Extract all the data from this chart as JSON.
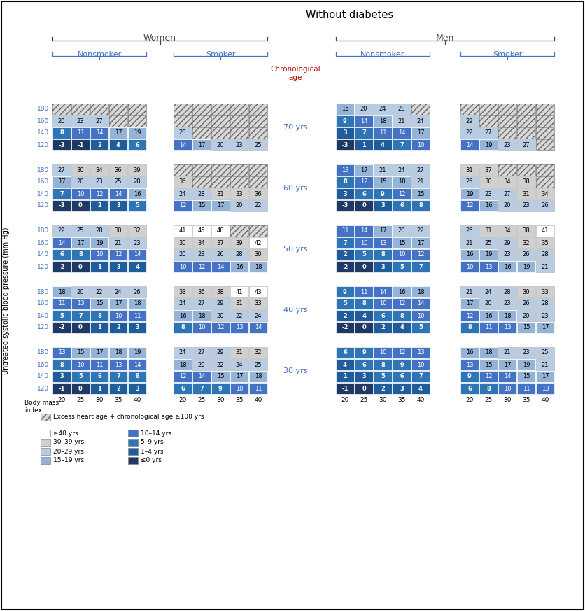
{
  "title": "Without diabetes",
  "ylabel": "Untreated systolic blood pressure (mm Hg)",
  "bmi_labels": [
    20,
    25,
    30,
    35,
    40
  ],
  "tables": {
    "women_nonsmoker": {
      "age70": [
        [
          null,
          null,
          null,
          null,
          null
        ],
        [
          20,
          23,
          27,
          null,
          null
        ],
        [
          8,
          11,
          14,
          17,
          19
        ],
        [
          -3,
          -1,
          2,
          4,
          6
        ]
      ],
      "age60": [
        [
          27,
          30,
          34,
          36,
          39
        ],
        [
          17,
          20,
          23,
          25,
          28
        ],
        [
          7,
          10,
          12,
          14,
          16
        ],
        [
          -3,
          0,
          2,
          3,
          5
        ]
      ],
      "age50": [
        [
          22,
          25,
          28,
          30,
          32
        ],
        [
          14,
          17,
          19,
          21,
          23
        ],
        [
          6,
          8,
          10,
          12,
          14
        ],
        [
          -2,
          0,
          1,
          3,
          4
        ]
      ],
      "age40": [
        [
          18,
          20,
          22,
          24,
          26
        ],
        [
          11,
          13,
          15,
          17,
          18
        ],
        [
          5,
          7,
          8,
          10,
          11
        ],
        [
          -2,
          0,
          1,
          2,
          3
        ]
      ],
      "age30": [
        [
          13,
          15,
          17,
          18,
          19
        ],
        [
          8,
          10,
          11,
          13,
          14
        ],
        [
          3,
          5,
          6,
          7,
          8
        ],
        [
          -1,
          0,
          1,
          2,
          3
        ]
      ]
    },
    "women_smoker": {
      "age70": [
        [
          null,
          null,
          null,
          null,
          null
        ],
        [
          null,
          null,
          null,
          null,
          null
        ],
        [
          28,
          null,
          null,
          null,
          null
        ],
        [
          14,
          17,
          20,
          23,
          25
        ]
      ],
      "age60": [
        [
          null,
          null,
          null,
          null,
          null
        ],
        [
          36,
          null,
          null,
          null,
          null
        ],
        [
          24,
          28,
          31,
          33,
          36
        ],
        [
          12,
          15,
          17,
          20,
          22
        ]
      ],
      "age50": [
        [
          41,
          45,
          48,
          null,
          null
        ],
        [
          30,
          34,
          37,
          39,
          42
        ],
        [
          20,
          23,
          26,
          28,
          30
        ],
        [
          10,
          12,
          14,
          16,
          18
        ]
      ],
      "age40": [
        [
          33,
          36,
          38,
          41,
          43
        ],
        [
          24,
          27,
          29,
          31,
          33
        ],
        [
          16,
          18,
          20,
          22,
          24
        ],
        [
          8,
          10,
          12,
          13,
          14
        ]
      ],
      "age30": [
        [
          24,
          27,
          29,
          31,
          32
        ],
        [
          18,
          20,
          22,
          24,
          25
        ],
        [
          12,
          14,
          15,
          17,
          18
        ],
        [
          6,
          7,
          9,
          10,
          11
        ]
      ]
    },
    "men_nonsmoker": {
      "age70": [
        [
          15,
          20,
          24,
          28,
          null
        ],
        [
          9,
          14,
          18,
          21,
          24
        ],
        [
          3,
          7,
          11,
          14,
          17
        ],
        [
          -3,
          1,
          4,
          7,
          10
        ]
      ],
      "age60": [
        [
          13,
          17,
          21,
          24,
          27
        ],
        [
          8,
          12,
          15,
          18,
          21
        ],
        [
          3,
          6,
          9,
          12,
          15
        ],
        [
          -3,
          0,
          3,
          6,
          8
        ]
      ],
      "age50": [
        [
          11,
          14,
          17,
          20,
          22
        ],
        [
          7,
          10,
          13,
          15,
          17
        ],
        [
          2,
          5,
          8,
          10,
          12
        ],
        [
          -2,
          0,
          3,
          5,
          7
        ]
      ],
      "age40": [
        [
          9,
          11,
          14,
          16,
          18
        ],
        [
          5,
          8,
          10,
          12,
          14
        ],
        [
          2,
          4,
          6,
          8,
          10
        ],
        [
          -2,
          0,
          2,
          4,
          5
        ]
      ],
      "age30": [
        [
          6,
          9,
          10,
          12,
          13
        ],
        [
          4,
          6,
          8,
          9,
          10
        ],
        [
          1,
          3,
          5,
          6,
          7
        ],
        [
          -1,
          0,
          2,
          3,
          4
        ]
      ]
    },
    "men_smoker": {
      "age70": [
        [
          null,
          null,
          null,
          null,
          null
        ],
        [
          29,
          null,
          null,
          null,
          null
        ],
        [
          22,
          27,
          null,
          null,
          null
        ],
        [
          14,
          19,
          23,
          27,
          null
        ]
      ],
      "age60": [
        [
          31,
          37,
          null,
          null,
          null
        ],
        [
          25,
          30,
          34,
          38,
          null
        ],
        [
          19,
          23,
          27,
          31,
          34
        ],
        [
          12,
          16,
          20,
          23,
          26
        ]
      ],
      "age50": [
        [
          26,
          31,
          34,
          38,
          41
        ],
        [
          21,
          25,
          29,
          32,
          35
        ],
        [
          16,
          19,
          23,
          26,
          28
        ],
        [
          10,
          13,
          16,
          19,
          21
        ]
      ],
      "age40": [
        [
          21,
          24,
          28,
          30,
          33
        ],
        [
          17,
          20,
          23,
          26,
          28
        ],
        [
          12,
          16,
          18,
          20,
          23
        ],
        [
          8,
          11,
          13,
          15,
          17
        ]
      ],
      "age30": [
        [
          16,
          18,
          21,
          23,
          25
        ],
        [
          13,
          15,
          17,
          19,
          21
        ],
        [
          9,
          12,
          14,
          15,
          17
        ],
        [
          6,
          8,
          10,
          11,
          13
        ]
      ]
    }
  },
  "colors": {
    "hatch_face": "#d8d8d8",
    "hatch_edge": "#666666",
    "ge40": "#ffffff",
    "30_39": "#d0d0d0",
    "20_29": "#b8cce4",
    "15_19": "#95b3d7",
    "10_14": "#4472c4",
    "5_9": "#2e75b6",
    "1_4": "#1f5c99",
    "le0": "#1f3864",
    "cell_edge": "#ffffff",
    "bp_label": "#4472c4",
    "title_color": "#000000",
    "section_color": "#4472c4",
    "chron_color": "#C00000",
    "age_label_color": "#4472c4"
  }
}
